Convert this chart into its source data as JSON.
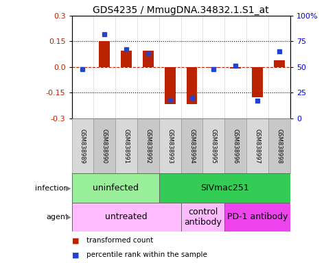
{
  "title": "GDS4235 / MmugDNA.34832.1.S1_at",
  "samples": [
    "GSM838989",
    "GSM838990",
    "GSM838991",
    "GSM838992",
    "GSM838993",
    "GSM838994",
    "GSM838995",
    "GSM838996",
    "GSM838997",
    "GSM838998"
  ],
  "transformed_counts": [
    0.0,
    0.152,
    0.095,
    0.095,
    -0.215,
    -0.215,
    -0.005,
    -0.01,
    -0.175,
    0.04
  ],
  "percentile_ranks": [
    48,
    82,
    67,
    63,
    18,
    20,
    48,
    51,
    17,
    65
  ],
  "ylim": [
    -0.3,
    0.3
  ],
  "y_ticks_left": [
    -0.3,
    -0.15,
    0.0,
    0.15,
    0.3
  ],
  "y_ticks_right": [
    0,
    25,
    50,
    75,
    100
  ],
  "y_tick_labels_right": [
    "0",
    "25",
    "50",
    "75",
    "100%"
  ],
  "bar_color": "#bb2200",
  "dot_color": "#2244cc",
  "infection_labels": [
    {
      "label": "uninfected",
      "start": 0,
      "end": 4,
      "color": "#99ee99"
    },
    {
      "label": "SIVmac251",
      "start": 4,
      "end": 10,
      "color": "#33cc55"
    }
  ],
  "agent_labels": [
    {
      "label": "untreated",
      "start": 0,
      "end": 5,
      "color": "#ffbbff"
    },
    {
      "label": "control\nantibody",
      "start": 5,
      "end": 7,
      "color": "#ffbbff"
    },
    {
      "label": "PD-1 antibody",
      "start": 7,
      "end": 10,
      "color": "#ee44ee"
    }
  ],
  "legend_items": [
    {
      "label": "transformed count",
      "color": "#bb2200"
    },
    {
      "label": "percentile rank within the sample",
      "color": "#2244cc"
    }
  ],
  "title_fontsize": 10,
  "tick_fontsize": 8,
  "label_fontsize": 9,
  "sample_fontsize": 6
}
